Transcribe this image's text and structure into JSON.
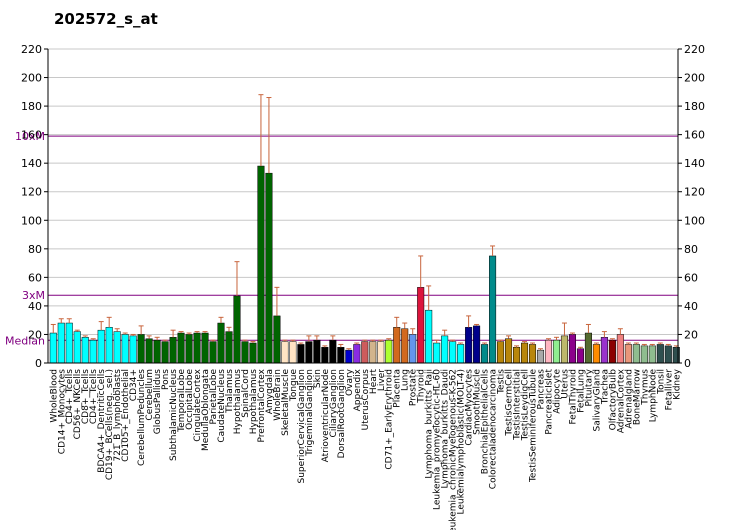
{
  "title": "202572_s_at",
  "chart_data": {
    "type": "bar",
    "title": "202572_s_at",
    "ylim": [
      0,
      220
    ],
    "yticks": [
      0,
      20,
      40,
      60,
      80,
      100,
      120,
      140,
      160,
      180,
      200,
      220
    ],
    "grid": true,
    "reference_lines": [
      {
        "label": "10xM",
        "value": 159,
        "color": "#800080"
      },
      {
        "label": "3xM",
        "value": 47.5,
        "color": "#800080"
      },
      {
        "label": "Median",
        "value": 15.9,
        "color": "#800080"
      }
    ],
    "categories": [
      "WholeBlood",
      "CD14+_Monocytes",
      "CD4+_Tcells",
      "CD56+_NKCells",
      "CD8+_Tcells",
      "CD4+_Tcells",
      "BDCA4+_DentriticCells",
      "CD19+_BCells(neg._sel.)",
      "721_B_lymphoblasts",
      "CD105+_Endothelial",
      "CD34+",
      "CerebellumPeduncles",
      "Cerebellum",
      "GlobusPallidus",
      "Pons",
      "SubthalamicNucleus",
      "TemporalLobe",
      "OccipitalLobe",
      "CingulateCortex",
      "MedullaOblongata",
      "ParietalLobe",
      "CaudateNucleus",
      "Thalamus",
      "Hypothalamus",
      "SpinalCord",
      "Hypothalamus",
      "PrefrontalCortex",
      "Amygdala",
      "WholeBrain",
      "SkeletalMuscle",
      "Tongue",
      "SuperiorCervicalGanglion",
      "TrigeminalGanglion",
      "Skin",
      "AtrioventricularNode",
      "CiliaryGanglion",
      "DorsalRootGanglion",
      "Ovary",
      "Appendix",
      "UterusCorpus",
      "Heart",
      "Liver",
      "CD71+_EarlyErythroid",
      "Placenta",
      "Lung",
      "Prostate",
      "Thyroid",
      "Lymphoma_burkitts_Raji",
      "Leukemia_promyelocytic-HL-60",
      "Lymphoma_burkitts_Daudi",
      "Leukemia_chronicMyelogenous-K-562",
      "Leukemialymphoblastic(MOLT-4)",
      "CardiacMyocytes",
      "SmoothMuscle",
      "BronchialEpithelialCells",
      "Colorectaladenocarcinoma",
      "Testis",
      "TestisGermCell",
      "TestisInterstitial",
      "TestisLeydigCell",
      "TestisSeminiferousTubule",
      "Pancreas",
      "PancreaticIslet",
      "Adipocyte",
      "Uterus",
      "FetalThyroid",
      "FetalLung",
      "Pituitary",
      "SalivaryGland",
      "Trachea",
      "OlfactoryBulb",
      "AdrenalCortex",
      "Adrenalgland",
      "BoneMarrow",
      "Thymus",
      "LymphNode",
      "Tonsil",
      "Fetalliver",
      "Kidney"
    ],
    "visible_labels": [
      "WholeBlood",
      "CD14+_Monocytes",
      "CD56+_NKCells",
      "CD4+_Tcells",
      "BDCA4+_DentriticCells",
      "721_B_lymphoblasts",
      "CD34+",
      "Cerebellum",
      "Pons",
      "TemporalLobe",
      "CingulateCortex",
      "ParietalLobe",
      "Thalamus",
      "SpinalCord",
      "Amygdala",
      "SkeletalMuscle",
      "SuperiorCervicalGanglion",
      "Skin",
      "CiliaryGanglion",
      "Ovary",
      "UterusCorpus",
      "Liver",
      "Placenta",
      "Prostate",
      "Lymphoma_burkitts_Raji",
      "Lymphoma_burkitts_Daudi",
      "Leukemialymphoblastic(MOLT-4)",
      "SmoothMuscle",
      "Colorectaladenocarcinoma",
      "TestisGermCell",
      "TestisLeydigCell",
      "Pancreas",
      "Adipocyte",
      "FetalThyroid",
      "Pituitary",
      "Trachea",
      "AdrenalCortex",
      "BoneMarrow",
      "LymphNode",
      "Fetalliver",
      "CD4+_Tcells",
      "CD8+_Tcells",
      "CD19+_BCells(neg._sel.)",
      "CD105+_Endothelial",
      "CerebellumPeduncles",
      "GlobusPallidus",
      "SubthalamicNucleus",
      "OccipitalLobe",
      "MedullaOblongata",
      "CaudateNucleus",
      "Hypothalamus",
      "PrefrontalCortex",
      "WholeBrain",
      "Tongue",
      "TrigeminalGanglion",
      "AtrioventricularNode",
      "DorsalRootGanglion",
      "Appendix",
      "Heart",
      "CD71+_EarlyErythroid",
      "Lung",
      "Thyroid",
      "Leukemia_promyelocytic-HL-60",
      "Leukemia_chronicMyelogenous-K-562",
      "CardiacMyocytes",
      "BronchialEpithelialCells",
      "Testis",
      "TestisInterstitial",
      "TestisSeminiferousTubule",
      "PancreaticIslet",
      "Uterus",
      "FetalLung",
      "SalivaryGland",
      "OlfactoryBulb",
      "Adrenalgland",
      "Thymus",
      "Tonsil",
      "Kidney"
    ],
    "values": [
      21,
      28,
      28,
      22,
      18,
      16,
      23,
      25,
      22,
      20,
      19,
      20,
      17,
      16,
      15,
      18,
      21,
      20,
      21,
      21,
      15,
      28,
      22,
      47,
      15,
      14,
      138,
      133,
      33,
      15,
      15,
      13,
      15,
      16,
      11,
      16,
      11,
      9,
      13,
      15,
      15,
      15,
      16,
      25,
      24,
      20,
      53,
      37,
      14,
      19,
      15,
      13,
      25,
      26,
      13,
      75,
      15,
      17,
      11,
      14,
      13,
      9,
      16,
      16,
      19,
      20,
      10,
      21,
      13,
      18,
      16,
      20,
      13,
      13,
      12,
      12,
      13,
      12,
      11
    ],
    "errors": [
      6,
      3,
      3,
      1,
      1,
      1,
      6,
      7,
      2,
      1,
      1,
      6,
      2,
      2,
      1,
      5,
      1,
      1,
      1,
      1,
      1,
      4,
      3,
      24,
      1,
      1,
      50,
      53,
      20,
      1,
      1,
      1,
      4,
      3,
      1,
      3,
      2,
      1,
      1,
      1,
      1,
      1,
      1,
      7,
      4,
      4,
      22,
      17,
      2,
      4,
      1,
      1,
      8,
      1,
      1,
      7,
      1,
      2,
      1,
      1,
      1,
      1,
      1,
      2,
      9,
      1,
      1,
      6,
      1,
      4,
      1,
      4,
      1,
      1,
      1,
      1,
      1,
      1,
      1
    ],
    "colors": [
      "#00ffff",
      "#00ffff",
      "#00ffff",
      "#00ffff",
      "#00ffff",
      "#00ffff",
      "#00ffff",
      "#00ffff",
      "#00ffff",
      "#00ffff",
      "#00ffff",
      "#006400",
      "#006400",
      "#006400",
      "#006400",
      "#006400",
      "#006400",
      "#006400",
      "#006400",
      "#006400",
      "#006400",
      "#006400",
      "#006400",
      "#006400",
      "#006400",
      "#006400",
      "#006400",
      "#006400",
      "#006400",
      "#ffe4c4",
      "#ffe4c4",
      "#000000",
      "#000000",
      "#000000",
      "#000000",
      "#000000",
      "#000000",
      "#0000cd",
      "#8a2be2",
      "#cd5c5c",
      "#d2b48c",
      "#ffe4c4",
      "#adff2f",
      "#d2691e",
      "#d2691e",
      "#6495ed",
      "#dc143c",
      "#00ffff",
      "#00ffff",
      "#00ffff",
      "#00ffff",
      "#00ffff",
      "#00008b",
      "#00008b",
      "#008b8b",
      "#008b8b",
      "#b8860b",
      "#b8860b",
      "#b8860b",
      "#b8860b",
      "#b8860b",
      "#a9a9a9",
      "#ffb6c1",
      "#90ee90",
      "#bdb76b",
      "#8b008b",
      "#8b008b",
      "#556b2f",
      "#ff8c00",
      "#9932cc",
      "#8b0000",
      "#f08080",
      "#e9967a",
      "#8fbc8f",
      "#8fbc8f",
      "#8fbc8f",
      "#2f4f4f",
      "#2f4f4f",
      "#2f4f4f"
    ]
  }
}
